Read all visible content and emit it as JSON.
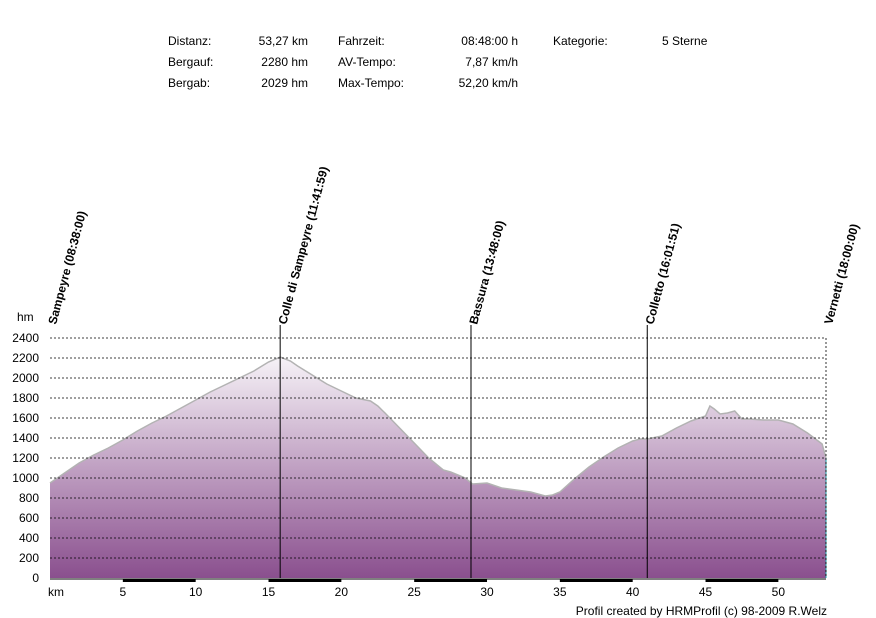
{
  "stats": {
    "col1_labels": [
      "Distanz:",
      "Bergauf:",
      "Bergab:"
    ],
    "col1_values": [
      "53,27 km",
      "2280 hm",
      "2029 hm"
    ],
    "col2_labels": [
      "Fahrzeit:",
      "AV-Tempo:",
      "Max-Tempo:"
    ],
    "col2_values": [
      "08:48:00 h",
      "7,87 km/h",
      "52,20 km/h"
    ],
    "col3_label": "Kategorie:",
    "col3_value": "5 Sterne"
  },
  "credit": "Profil created by HRMProfil (c) 98-2009 R.Welz",
  "chart_data": {
    "type": "area",
    "ylabel": "hm",
    "xlabel": "km",
    "xlim": [
      0,
      53.27
    ],
    "ylim": [
      0,
      2400
    ],
    "yticks": [
      0,
      200,
      400,
      600,
      800,
      1000,
      1200,
      1400,
      1600,
      1800,
      2000,
      2200,
      2400
    ],
    "xticks": [
      5,
      10,
      15,
      20,
      25,
      30,
      35,
      40,
      45,
      50
    ],
    "grid": true,
    "colors": {
      "fill_top": "#f6f2f7",
      "fill_bottom": "#8a4f8e",
      "line": "#b3b3b3",
      "grid": "#000000"
    },
    "waypoints": [
      {
        "km": 0,
        "label": "Sampeyre (08:38:00)"
      },
      {
        "km": 15.8,
        "label": "Colle di Sampeyre (11:41:59)"
      },
      {
        "km": 28.9,
        "label": "Bassura (13:48:00)"
      },
      {
        "km": 41,
        "label": "Colletto (16:01:51)"
      },
      {
        "km": 53.27,
        "label": "Vernetti (18:00:00)"
      }
    ],
    "x": [
      0,
      1,
      2,
      3,
      4,
      5,
      6,
      7,
      8,
      9,
      10,
      11,
      12,
      13,
      14,
      15,
      15.8,
      16.5,
      17,
      18,
      19,
      20,
      21,
      22,
      22.5,
      23,
      24,
      25,
      26,
      27,
      27.5,
      28,
      28.5,
      29,
      30,
      31,
      32,
      33,
      34,
      34.5,
      35,
      36,
      37,
      38,
      39,
      40,
      40.5,
      41,
      42,
      43,
      44,
      45,
      45.3,
      45.6,
      46,
      46.5,
      47,
      47.5,
      48,
      49,
      50,
      51,
      52,
      53,
      53.27
    ],
    "y": [
      950,
      1050,
      1150,
      1230,
      1300,
      1380,
      1470,
      1550,
      1620,
      1700,
      1780,
      1860,
      1930,
      2000,
      2070,
      2160,
      2210,
      2170,
      2120,
      2030,
      1940,
      1870,
      1800,
      1770,
      1720,
      1650,
      1500,
      1350,
      1200,
      1080,
      1060,
      1030,
      1000,
      940,
      950,
      900,
      880,
      860,
      820,
      830,
      860,
      990,
      1110,
      1210,
      1300,
      1370,
      1390,
      1390,
      1420,
      1500,
      1570,
      1620,
      1720,
      1690,
      1640,
      1650,
      1670,
      1590,
      1590,
      1580,
      1580,
      1540,
      1450,
      1340,
      1200
    ]
  }
}
